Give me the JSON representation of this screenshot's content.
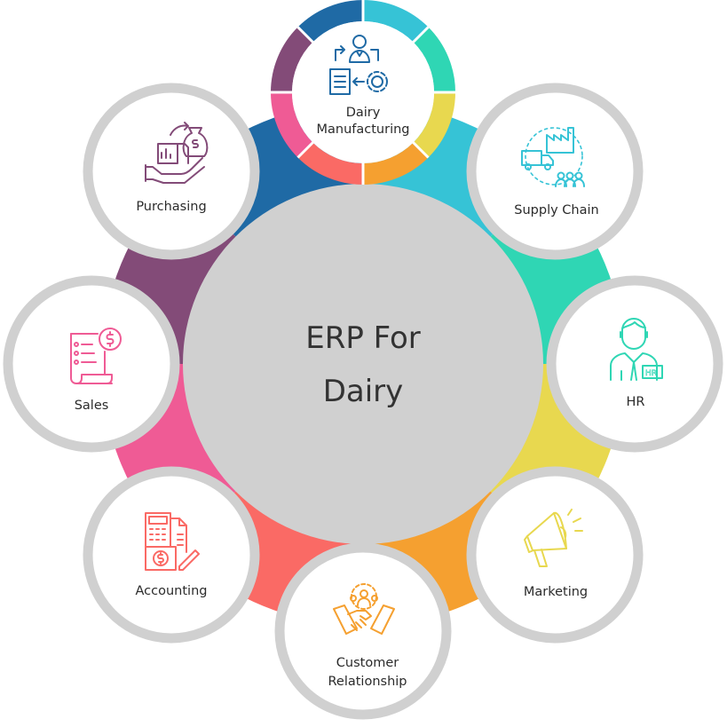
{
  "center": {
    "line1": "ERP For",
    "line2": "Dairy"
  },
  "nodes": [
    {
      "lines": [
        "Dairy",
        "Manufacturing"
      ],
      "icon": "manufacturing-icon",
      "color": "#1f6aa5"
    },
    {
      "lines": [
        "Supply Chain"
      ],
      "icon": "supply-chain-icon",
      "color": "#36c3d6"
    },
    {
      "lines": [
        "HR"
      ],
      "icon": "hr-icon",
      "color": "#2fd6b4"
    },
    {
      "lines": [
        "Marketing"
      ],
      "icon": "megaphone-icon",
      "color": "#e8d84f"
    },
    {
      "lines": [
        "Customer",
        "Relationship"
      ],
      "icon": "handshake-icon",
      "color": "#f5a030"
    },
    {
      "lines": [
        "Accounting"
      ],
      "icon": "calculator-icon",
      "color": "#fa6a65"
    },
    {
      "lines": [
        "Sales"
      ],
      "icon": "invoice-icon",
      "color": "#ef5b95"
    },
    {
      "lines": [
        "Purchasing"
      ],
      "icon": "money-bag-icon",
      "color": "#834b78"
    }
  ],
  "colors": {
    "ring_segments": [
      "#1f6aa5",
      "#36c3d6",
      "#2fd6b4",
      "#e8d84f",
      "#f5a030",
      "#fa6a65",
      "#ef5b95",
      "#834b78"
    ],
    "center_fill": "#d0d0d0",
    "node_border": "#d0d0d0",
    "center_text": "#333333"
  }
}
